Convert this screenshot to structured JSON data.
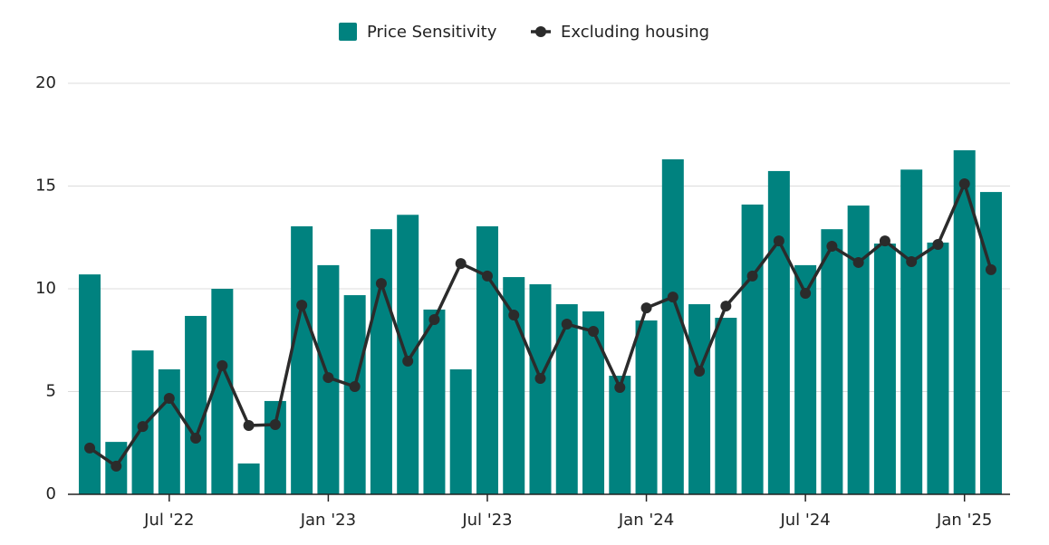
{
  "chart_data": {
    "type": "bar_line",
    "categories": [
      null,
      null,
      null,
      "Jul '22",
      null,
      null,
      null,
      null,
      null,
      "Jan '23",
      null,
      null,
      null,
      null,
      null,
      "Jul '23",
      null,
      null,
      null,
      null,
      null,
      "Jan '24",
      null,
      null,
      null,
      null,
      null,
      "Jul '24",
      null,
      null,
      null,
      null,
      null,
      "Jan '25",
      null
    ],
    "series": [
      {
        "name": "Price Sensitivity",
        "type": "bar",
        "color": "#00827f",
        "values": [
          10.7,
          2.55,
          7.0,
          6.08,
          8.68,
          10.0,
          1.5,
          4.54,
          13.04,
          11.15,
          9.69,
          12.9,
          13.6,
          8.99,
          6.08,
          13.04,
          10.57,
          10.22,
          9.25,
          8.9,
          5.77,
          8.46,
          16.3,
          9.25,
          8.59,
          14.1,
          15.73,
          11.15,
          12.9,
          14.05,
          12.2,
          15.8,
          12.25,
          16.74,
          14.71
        ]
      },
      {
        "name": "Excluding housing",
        "type": "line",
        "color": "#2b2b2b",
        "values": [
          2.25,
          1.37,
          3.3,
          4.67,
          2.73,
          6.26,
          3.35,
          3.39,
          9.2,
          5.68,
          5.24,
          10.26,
          6.48,
          8.5,
          11.23,
          10.62,
          8.72,
          5.64,
          8.28,
          7.93,
          5.2,
          9.07,
          9.6,
          5.99,
          9.16,
          10.62,
          12.33,
          9.78,
          12.07,
          11.28,
          12.33,
          11.32,
          12.16,
          15.11,
          10.93
        ]
      }
    ],
    "ylim": [
      0,
      20
    ],
    "yticks": [
      0,
      5,
      10,
      15,
      20
    ],
    "grid": true,
    "legend": "top"
  }
}
